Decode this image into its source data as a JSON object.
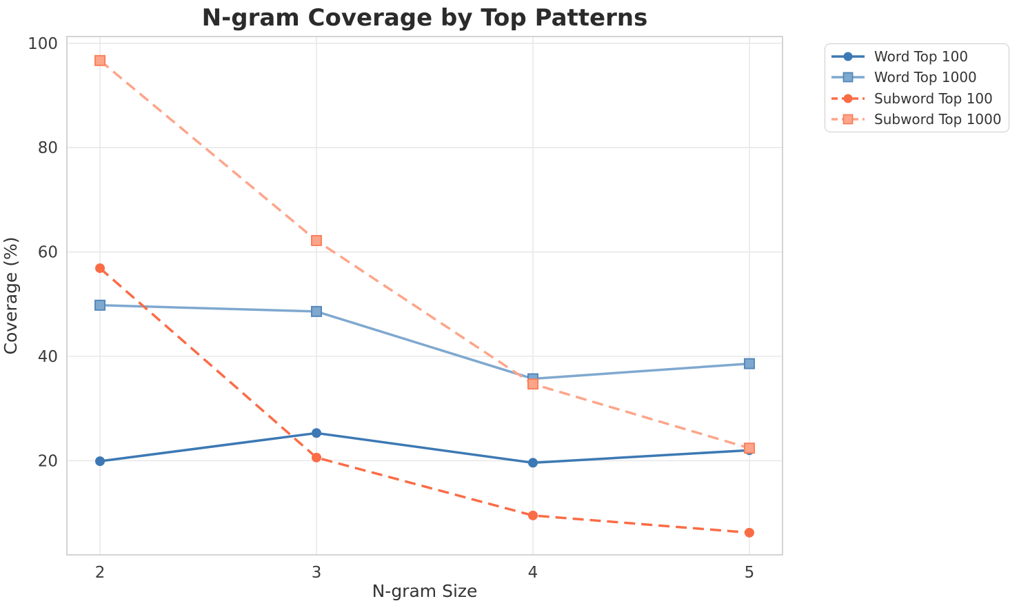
{
  "chart_data": {
    "type": "line",
    "title": "N-gram Coverage by Top Patterns",
    "xlabel": "N-gram Size",
    "ylabel": "Coverage (%)",
    "x": [
      2,
      3,
      4,
      5
    ],
    "xticks": [
      2,
      3,
      4,
      5
    ],
    "yticks": [
      20,
      40,
      60,
      80,
      100
    ],
    "xlim": [
      1.847,
      5.153
    ],
    "ylim": [
      1.95,
      101.3
    ],
    "grid": true,
    "legend_position": "outside-top-right",
    "series": [
      {
        "name": "Word Top 100",
        "values": [
          19.9,
          25.3,
          19.6,
          22.0
        ],
        "color": "#3c79b4",
        "marker": "circle",
        "marker_edge": "#3c79b4",
        "line_style": "solid"
      },
      {
        "name": "Word Top 1000",
        "values": [
          49.8,
          48.6,
          35.7,
          38.6
        ],
        "color": "#7fa8cf",
        "marker": "square",
        "marker_edge": "#5488bb",
        "line_style": "solid"
      },
      {
        "name": "Subword Top 100",
        "values": [
          56.9,
          20.6,
          9.5,
          6.2
        ],
        "color": "#fa6c46",
        "marker": "circle",
        "marker_edge": "#fa6c46",
        "line_style": "dashed"
      },
      {
        "name": "Subword Top 1000",
        "values": [
          96.7,
          62.2,
          34.7,
          22.4
        ],
        "color": "#fda58a",
        "marker": "square",
        "marker_edge": "#fb7f5b",
        "line_style": "dashed"
      }
    ],
    "style": {
      "grid_color": "#e8e8e8",
      "spine_color": "#c9c9c9",
      "line_width": 3.5,
      "dash_pattern": "16 9"
    }
  }
}
